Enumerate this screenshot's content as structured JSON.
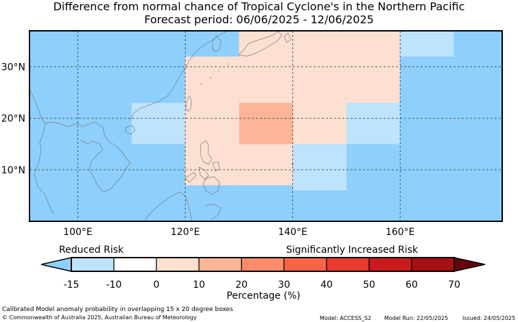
{
  "header": {
    "title_line1": "Difference from normal chance of Tropical Cyclone's in the Northern Pacific",
    "title_line2": "Forecast period: 06/06/2025 - 12/06/2025"
  },
  "map": {
    "lon_range": [
      91,
      179
    ],
    "lat_range": [
      0,
      37
    ],
    "lon_ticks": [
      {
        "value": 100,
        "label": "100°E"
      },
      {
        "value": 120,
        "label": "120°E"
      },
      {
        "value": 140,
        "label": "140°E"
      },
      {
        "value": 160,
        "label": "160°E"
      }
    ],
    "lat_ticks": [
      {
        "value": 10,
        "label": "10°N"
      },
      {
        "value": 20,
        "label": "20°N"
      },
      {
        "value": 30,
        "label": "30°N"
      }
    ],
    "background_color": "#8ecffd",
    "cells": [
      {
        "lon0": 120,
        "lon1": 130,
        "lat0": 7,
        "lat1": 32,
        "value": 0
      },
      {
        "lon0": 130,
        "lon1": 140,
        "lat0": 7,
        "lat1": 15,
        "value": 0
      },
      {
        "lon0": 130,
        "lon1": 140,
        "lat0": 15,
        "lat1": 23,
        "value": 12
      },
      {
        "lon0": 130,
        "lon1": 140,
        "lat0": 23,
        "lat1": 32,
        "value": 5
      },
      {
        "lon0": 130,
        "lon1": 140,
        "lat0": 32,
        "lat1": 37,
        "value": 0
      },
      {
        "lon0": 120,
        "lon1": 130,
        "lat0": 15,
        "lat1": 23,
        "value": 5
      },
      {
        "lon0": 140,
        "lon1": 150,
        "lat0": 15,
        "lat1": 37,
        "value": 5
      },
      {
        "lon0": 140,
        "lon1": 150,
        "lat0": 6,
        "lat1": 15,
        "value": -12
      },
      {
        "lon0": 150,
        "lon1": 160,
        "lat0": 15,
        "lat1": 23,
        "value": -12
      },
      {
        "lon0": 150,
        "lon1": 160,
        "lat0": 23,
        "lat1": 37,
        "value": 0
      },
      {
        "lon0": 110,
        "lon1": 120,
        "lat0": 15,
        "lat1": 23,
        "value": -12
      },
      {
        "lon0": 160,
        "lon1": 170,
        "lat0": 32,
        "lat1": 37,
        "value": -12
      }
    ]
  },
  "colorbar": {
    "levels": [
      -15,
      -10,
      0,
      10,
      20,
      30,
      40,
      50,
      60,
      70
    ],
    "tick_labels": [
      "-15",
      "-10",
      "0",
      "10",
      "20",
      "30",
      "40",
      "50",
      "60",
      "70"
    ],
    "colors": [
      "#bee3fc",
      "#ffffff",
      "#fde0d2",
      "#fcb597",
      "#fc8b6a",
      "#f86448",
      "#ea3a2d",
      "#cb1a1d",
      "#a50f15"
    ],
    "under_color": "#8ecffd",
    "over_color": "#67000d",
    "label": "Percentage (%)",
    "left_caption": "Reduced Risk",
    "right_caption": "Significantly Increased Risk"
  },
  "footer": {
    "description": "Calibrated Model anomaly probability in overlapping 15 x 20 degree boxes",
    "copyright": "© Commonwealth of Australia 2025, Australian Bureau of Meteorology",
    "model": "Model: ACCESS_S2",
    "model_run": "Model Run: 22/05/2025",
    "issued": "Issued: 24/05/2025"
  }
}
